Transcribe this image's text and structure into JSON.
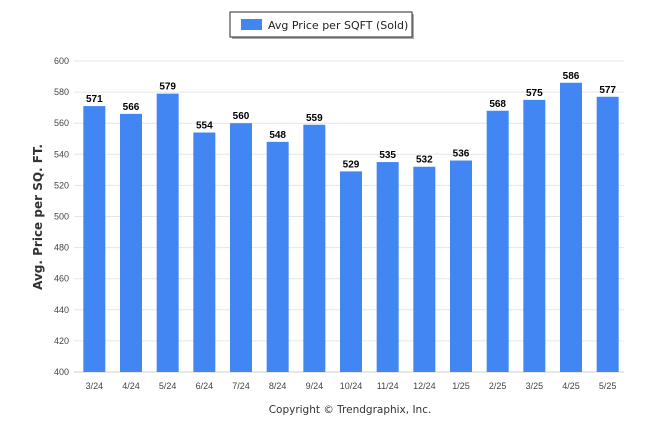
{
  "chart_data": {
    "type": "bar",
    "categories": [
      "3/24",
      "4/24",
      "5/24",
      "6/24",
      "7/24",
      "8/24",
      "9/24",
      "10/24",
      "11/24",
      "12/24",
      "1/25",
      "2/25",
      "3/25",
      "4/25",
      "5/25"
    ],
    "series": [
      {
        "name": "Avg Price per SQFT (Sold)",
        "values": [
          571,
          566,
          579,
          554,
          560,
          548,
          559,
          529,
          535,
          532,
          536,
          568,
          575,
          586,
          577
        ]
      }
    ],
    "ylabel": "Avg. Price per SQ. FT.",
    "xlabel": "",
    "ylim": [
      400,
      600
    ],
    "yticks": [
      400,
      420,
      440,
      460,
      480,
      500,
      520,
      540,
      560,
      580,
      600
    ],
    "grid": true,
    "legend": "top-center",
    "bar_color": "#4286f4"
  },
  "credit": "Copyright © Trendgraphix, Inc."
}
